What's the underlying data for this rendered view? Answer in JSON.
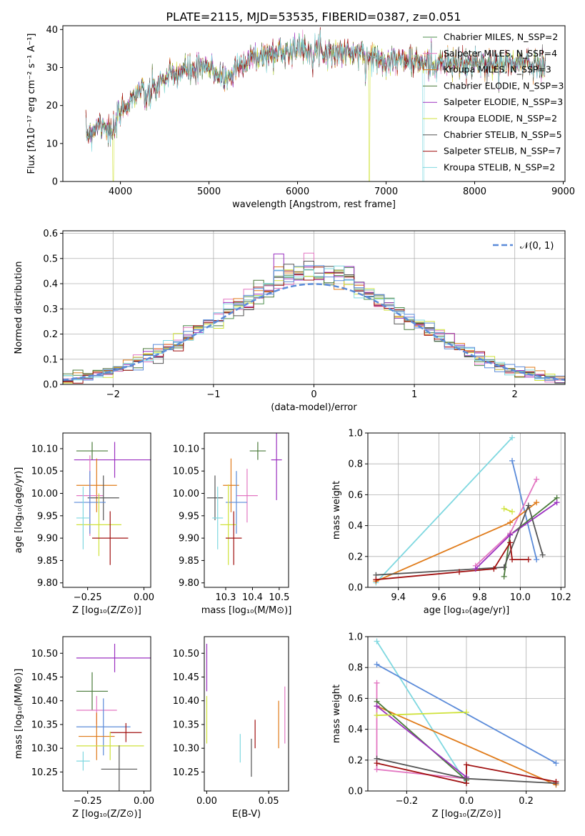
{
  "title": "PLATE=2115, MJD=53535, FIBERID=0387, z=0.051",
  "colors": {
    "chabrier_miles": "#4f8f4f",
    "salpeter_miles": "#e377c2",
    "kroupa_miles": "#e07b1a",
    "chabrier_elodie": "#4a7a3a",
    "salpeter_elodie": "#9b30c0",
    "kroupa_elodie": "#cfe23a",
    "chabrier_stelib": "#555555",
    "salpeter_stelib": "#a01010",
    "kroupa_stelib": "#7fd8e0",
    "gaussian": "#5b8bd9",
    "blue_model": "#5b8bd9",
    "grid": "#b0b0b0"
  },
  "chart_data": [
    {
      "id": "spectrum",
      "type": "line",
      "xlabel": "wavelength [Angstrom, rest frame]",
      "ylabel": "Flux [fλ10⁻¹⁷ erg cm⁻² s⁻¹ A⁻¹]",
      "xlim": [
        3350,
        9020
      ],
      "ylim": [
        0,
        41
      ],
      "xticks": [
        "4000",
        "5000",
        "6000",
        "7000",
        "8000",
        "9000"
      ],
      "yticks": [
        "0",
        "10",
        "20",
        "30",
        "40"
      ],
      "legend_position": "right",
      "legend": [
        {
          "name": "Chabrier MILES, N_SSP=2",
          "color": "#4f8f4f"
        },
        {
          "name": "Salpeter MILES, N_SSP=4",
          "color": "#e377c2"
        },
        {
          "name": "Kroupa MILES, N_SSP=3",
          "color": "#e07b1a"
        },
        {
          "name": "Chabrier ELODIE, N_SSP=3",
          "color": "#4a7a3a"
        },
        {
          "name": "Salpeter ELODIE, N_SSP=3",
          "color": "#9b30c0"
        },
        {
          "name": "Kroupa ELODIE, N_SSP=2",
          "color": "#cfe23a"
        },
        {
          "name": "Chabrier STELIB, N_SSP=5",
          "color": "#555555"
        },
        {
          "name": "Salpeter STELIB, N_SSP=7",
          "color": "#a01010"
        },
        {
          "name": "Kroupa STELIB, N_SSP=2",
          "color": "#7fd8e0"
        }
      ],
      "continuum": {
        "x": [
          3600,
          3700,
          3800,
          3900,
          4000,
          4100,
          4200,
          4300,
          4400,
          4500,
          4700,
          5000,
          5200,
          5400,
          5600,
          5800,
          6000,
          6200,
          6400,
          6600,
          6800,
          7000,
          7200,
          7400,
          7600,
          7800,
          8000,
          8300,
          8600,
          8800
        ],
        "y": [
          12,
          14,
          16,
          12,
          18,
          21,
          24,
          22,
          25,
          27,
          29,
          30,
          27,
          32,
          33,
          34,
          35,
          35,
          34,
          34,
          33,
          32,
          32,
          31,
          31,
          31,
          31,
          31,
          31,
          31
        ]
      }
    },
    {
      "id": "residuals",
      "type": "line",
      "xlabel": "(data-model)/error",
      "ylabel": "Normed distribution",
      "xlim": [
        -2.5,
        2.5
      ],
      "ylim": [
        0,
        0.61
      ],
      "xticks": [
        "−2",
        "−1",
        "0",
        "1",
        "2"
      ],
      "yticks": [
        "0.0",
        "0.1",
        "0.2",
        "0.3",
        "0.4",
        "0.5",
        "0.6"
      ],
      "grid": true,
      "legend": [
        {
          "name": "𝒩(0, 1)",
          "color": "#5b8bd9"
        }
      ],
      "legend_position": "top-right"
    },
    {
      "id": "age_vs_Z",
      "type": "scatter",
      "xlabel": "Z [log₁₀(Z/Z⊙)]",
      "ylabel": "age  [log₁₀(age/yr)]",
      "xlim": [
        -0.36,
        0.03
      ],
      "ylim": [
        9.79,
        10.135
      ],
      "xticks": [
        "−0.25",
        "0.00"
      ],
      "yticks": [
        "9.80",
        "9.85",
        "9.90",
        "9.95",
        "10.00",
        "10.05",
        "10.10"
      ],
      "points": [
        {
          "x": -0.23,
          "y": 10.095,
          "xerr": 0.07,
          "yerr": 0.02,
          "c": "#4a7a3a"
        },
        {
          "x": -0.13,
          "y": 10.075,
          "xerr": 0.18,
          "yerr": 0.04,
          "c": "#9b30c0"
        },
        {
          "x": -0.21,
          "y": 10.018,
          "xerr": 0.09,
          "yerr": 0.06,
          "c": "#e07b1a"
        },
        {
          "x": -0.24,
          "y": 9.995,
          "xerr": 0.06,
          "yerr": 0.09,
          "c": "#e377c2"
        },
        {
          "x": -0.18,
          "y": 9.99,
          "xerr": 0.07,
          "yerr": 0.05,
          "c": "#555555"
        },
        {
          "x": -0.24,
          "y": 9.98,
          "xerr": 0.07,
          "yerr": 0.07,
          "c": "#5b8bd9"
        },
        {
          "x": -0.2,
          "y": 9.93,
          "xerr": 0.1,
          "yerr": 0.07,
          "c": "#cfe23a"
        },
        {
          "x": -0.27,
          "y": 9.945,
          "xerr": 0.03,
          "yerr": 0.07,
          "c": "#7fd8e0"
        },
        {
          "x": -0.15,
          "y": 9.9,
          "xerr": 0.08,
          "yerr": 0.06,
          "c": "#a01010"
        }
      ]
    },
    {
      "id": "age_vs_mass",
      "type": "scatter",
      "xlabel": "mass [log₁₀(M/M⊙)]",
      "ylabel": "",
      "xlim": [
        10.22,
        10.535
      ],
      "ylim": [
        9.79,
        10.135
      ],
      "xticks": [
        "10.3",
        "10.4",
        "10.5"
      ],
      "yticks": [
        "9.80",
        "9.85",
        "9.90",
        "9.95",
        "10.00",
        "10.05",
        "10.10"
      ],
      "points": [
        {
          "x": 10.42,
          "y": 10.095,
          "xerr": 0.03,
          "yerr": 0.02,
          "c": "#4a7a3a"
        },
        {
          "x": 10.49,
          "y": 10.075,
          "xerr": 0.02,
          "yerr": 0.09,
          "c": "#9b30c0"
        },
        {
          "x": 10.32,
          "y": 10.018,
          "xerr": 0.03,
          "yerr": 0.06,
          "c": "#e07b1a"
        },
        {
          "x": 10.38,
          "y": 9.995,
          "xerr": 0.04,
          "yerr": 0.06,
          "c": "#e377c2"
        },
        {
          "x": 10.26,
          "y": 9.99,
          "xerr": 0.03,
          "yerr": 0.05,
          "c": "#555555"
        },
        {
          "x": 10.34,
          "y": 9.98,
          "xerr": 0.04,
          "yerr": 0.07,
          "c": "#5b8bd9"
        },
        {
          "x": 10.31,
          "y": 9.93,
          "xerr": 0.03,
          "yerr": 0.09,
          "c": "#cfe23a"
        },
        {
          "x": 10.27,
          "y": 9.945,
          "xerr": 0.02,
          "yerr": 0.07,
          "c": "#7fd8e0"
        },
        {
          "x": 10.33,
          "y": 9.9,
          "xerr": 0.03,
          "yerr": 0.06,
          "c": "#a01010"
        }
      ]
    },
    {
      "id": "weight_vs_age",
      "type": "line",
      "xlabel": "age  [log₁₀(age/yr)]",
      "ylabel": "mass weight",
      "xlim": [
        9.25,
        10.22
      ],
      "ylim": [
        0,
        1
      ],
      "xticks": [
        "9.4",
        "9.6",
        "9.8",
        "10.0",
        "10.2"
      ],
      "yticks": [
        "0.0",
        "0.2",
        "0.4",
        "0.6",
        "0.8",
        "1.0"
      ],
      "grid": true,
      "series": [
        {
          "c": "#7fd8e0",
          "x": [
            9.29,
            9.96
          ],
          "y": [
            0.03,
            0.97
          ]
        },
        {
          "c": "#5b8bd9",
          "x": [
            9.96,
            10.08
          ],
          "y": [
            0.82,
            0.18
          ]
        },
        {
          "c": "#e377c2",
          "x": [
            9.78,
            9.95,
            10.08
          ],
          "y": [
            0.14,
            0.35,
            0.7
          ]
        },
        {
          "c": "#e07b1a",
          "x": [
            9.29,
            9.95,
            10.08
          ],
          "y": [
            0.04,
            0.42,
            0.55
          ]
        },
        {
          "c": "#4a7a3a",
          "x": [
            9.92,
            9.95,
            10.18
          ],
          "y": [
            0.07,
            0.34,
            0.58
          ]
        },
        {
          "c": "#9b30c0",
          "x": [
            9.78,
            9.95,
            10.18
          ],
          "y": [
            0.12,
            0.34,
            0.55
          ]
        },
        {
          "c": "#cfe23a",
          "x": [
            9.92,
            9.96
          ],
          "y": [
            0.51,
            0.49
          ]
        },
        {
          "c": "#555555",
          "x": [
            9.29,
            9.92,
            10.04,
            10.11
          ],
          "y": [
            0.08,
            0.13,
            0.53,
            0.21
          ]
        },
        {
          "c": "#a01010",
          "x": [
            9.29,
            9.7,
            9.87,
            9.95,
            9.96,
            10.04
          ],
          "y": [
            0.05,
            0.1,
            0.12,
            0.29,
            0.18,
            0.18
          ]
        }
      ]
    },
    {
      "id": "mass_vs_Z",
      "type": "scatter",
      "xlabel": "Z [log₁₀(Z/Z⊙)]",
      "ylabel": "mass [log₁₀(M/M⊙)]",
      "xlim": [
        -0.36,
        0.03
      ],
      "ylim": [
        10.21,
        10.535
      ],
      "xticks": [
        "−0.25",
        "0.00"
      ],
      "yticks": [
        "10.25",
        "10.30",
        "10.35",
        "10.40",
        "10.45",
        "10.50"
      ],
      "points": [
        {
          "x": -0.13,
          "y": 10.49,
          "xerr": 0.17,
          "yerr": 0.03,
          "c": "#9b30c0"
        },
        {
          "x": -0.23,
          "y": 10.42,
          "xerr": 0.07,
          "yerr": 0.04,
          "c": "#4a7a3a"
        },
        {
          "x": -0.21,
          "y": 10.38,
          "xerr": 0.09,
          "yerr": 0.03,
          "c": "#e377c2"
        },
        {
          "x": -0.18,
          "y": 10.345,
          "xerr": 0.12,
          "yerr": 0.06,
          "c": "#5b8bd9"
        },
        {
          "x": -0.08,
          "y": 10.333,
          "xerr": 0.07,
          "yerr": 0.02,
          "c": "#a01010"
        },
        {
          "x": -0.21,
          "y": 10.325,
          "xerr": 0.08,
          "yerr": 0.05,
          "c": "#e07b1a"
        },
        {
          "x": -0.15,
          "y": 10.305,
          "xerr": 0.15,
          "yerr": 0.03,
          "c": "#cfe23a"
        },
        {
          "x": -0.27,
          "y": 10.273,
          "xerr": 0.03,
          "yerr": 0.02,
          "c": "#7fd8e0"
        },
        {
          "x": -0.11,
          "y": 10.256,
          "xerr": 0.08,
          "yerr": 0.05,
          "c": "#555555"
        }
      ]
    },
    {
      "id": "mass_vs_ebv",
      "type": "scatter",
      "xlabel": "E(B-V)",
      "ylabel": "",
      "xlim": [
        -0.002,
        0.066
      ],
      "ylim": [
        10.21,
        10.535
      ],
      "xticks": [
        "0.00",
        "0.05"
      ],
      "yticks": [
        "10.25",
        "10.30",
        "10.35",
        "10.40",
        "10.45",
        "10.50"
      ],
      "points": [
        {
          "x": 0.0,
          "y": 10.47,
          "xerr": 0,
          "yerr": 0.05,
          "c": "#9b30c0"
        },
        {
          "x": 0.0,
          "y": 10.36,
          "xerr": 0,
          "yerr": 0.05,
          "c": "#cfe23a"
        },
        {
          "x": 0.027,
          "y": 10.3,
          "xerr": 0,
          "yerr": 0.03,
          "c": "#7fd8e0"
        },
        {
          "x": 0.036,
          "y": 10.28,
          "xerr": 0,
          "yerr": 0.04,
          "c": "#555555"
        },
        {
          "x": 0.039,
          "y": 10.33,
          "xerr": 0,
          "yerr": 0.03,
          "c": "#a01010"
        },
        {
          "x": 0.058,
          "y": 10.35,
          "xerr": 0,
          "yerr": 0.05,
          "c": "#e07b1a"
        },
        {
          "x": 0.063,
          "y": 10.37,
          "xerr": 0,
          "yerr": 0.06,
          "c": "#e377c2"
        }
      ]
    },
    {
      "id": "weight_vs_Z",
      "type": "line",
      "xlabel": "Z [log₁₀(Z/Z⊙)]",
      "ylabel": "mass weight",
      "xlim": [
        -0.33,
        0.33
      ],
      "ylim": [
        0,
        1
      ],
      "xticks": [
        "−0.2",
        "0.0",
        "0.2"
      ],
      "yticks": [
        "0.0",
        "0.2",
        "0.4",
        "0.6",
        "0.8",
        "1.0"
      ],
      "grid": true,
      "series": [
        {
          "c": "#7fd8e0",
          "x": [
            -0.3,
            0.0
          ],
          "y": [
            0.97,
            0.05
          ]
        },
        {
          "c": "#5b8bd9",
          "x": [
            -0.3,
            0.3
          ],
          "y": [
            0.82,
            0.18
          ]
        },
        {
          "c": "#e377c2",
          "x": [
            -0.3,
            -0.3,
            0.0
          ],
          "y": [
            0.7,
            0.14,
            0.08
          ]
        },
        {
          "c": "#e07b1a",
          "x": [
            -0.3,
            0.3
          ],
          "y": [
            0.55,
            0.04
          ]
        },
        {
          "c": "#4a7a3a",
          "x": [
            -0.3,
            0.0
          ],
          "y": [
            0.58,
            0.07
          ]
        },
        {
          "c": "#9b30c0",
          "x": [
            -0.3,
            0.0
          ],
          "y": [
            0.55,
            0.09
          ]
        },
        {
          "c": "#cfe23a",
          "x": [
            -0.3,
            0.0
          ],
          "y": [
            0.49,
            0.51
          ]
        },
        {
          "c": "#555555",
          "x": [
            -0.3,
            0.0,
            0.3
          ],
          "y": [
            0.21,
            0.08,
            0.05
          ]
        },
        {
          "c": "#a01010",
          "x": [
            -0.3,
            0.0,
            0.0,
            0.3
          ],
          "y": [
            0.18,
            0.05,
            0.17,
            0.06
          ]
        }
      ]
    }
  ]
}
